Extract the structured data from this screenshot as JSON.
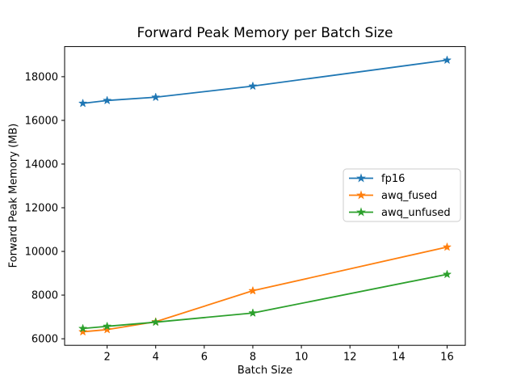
{
  "chart_data": {
    "type": "line",
    "title": "Forward Peak Memory per Batch Size",
    "xlabel": "Batch Size",
    "ylabel": "Forward Peak Memory (MB)",
    "x": [
      1,
      2,
      4,
      8,
      16
    ],
    "series": [
      {
        "name": "fp16",
        "color": "#1f77b4",
        "values": [
          16780,
          16910,
          17060,
          17570,
          18760
        ]
      },
      {
        "name": "awq_fused",
        "color": "#ff7f0e",
        "values": [
          6320,
          6420,
          6780,
          8200,
          10200
        ]
      },
      {
        "name": "awq_unfused",
        "color": "#2ca02c",
        "values": [
          6470,
          6570,
          6760,
          7180,
          8950
        ]
      }
    ],
    "xlim": [
      0.25,
      16.75
    ],
    "ylim": [
      5700,
      19380
    ],
    "xticks": [
      2,
      4,
      6,
      8,
      10,
      12,
      14,
      16
    ],
    "yticks": [
      6000,
      8000,
      10000,
      12000,
      14000,
      16000,
      18000
    ],
    "grid": false,
    "marker": "star",
    "legend_position": "center right",
    "spine_color": "#000000",
    "legend_border_color": "#cccccc"
  }
}
